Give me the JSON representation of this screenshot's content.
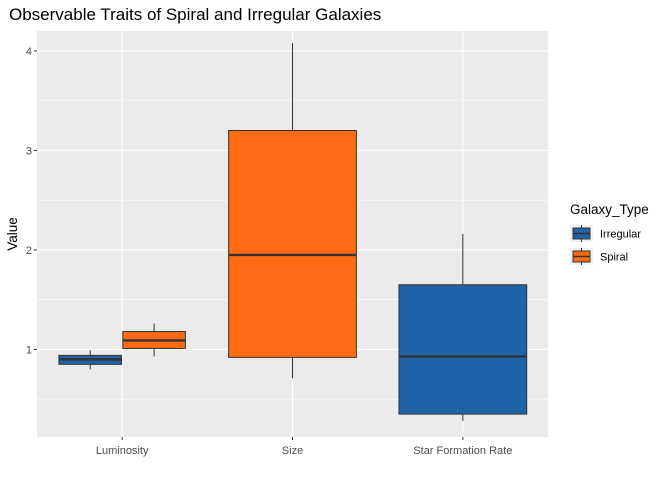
{
  "chart_data": {
    "type": "boxplot",
    "title": "Observable Traits of Spiral and Irregular Galaxies",
    "xlabel": "",
    "ylabel": "Value",
    "categories": [
      "Luminosity",
      "Size",
      "Star Formation Rate"
    ],
    "y_ticks": [
      1,
      2,
      3,
      4
    ],
    "ylim": [
      0.12,
      4.2
    ],
    "grid": true,
    "legend": {
      "title": "Galaxy_Type",
      "placement": "right",
      "entries": [
        {
          "name": "Irregular",
          "color": "#1f63a8"
        },
        {
          "name": "Spiral",
          "color": "#ff6a13"
        }
      ]
    },
    "series": [
      {
        "name": "Irregular",
        "color": "#1f63a8",
        "boxes": [
          {
            "category": "Luminosity",
            "min": 0.8,
            "q1": 0.85,
            "median": 0.9,
            "q3": 0.94,
            "max": 0.99
          },
          {
            "category": "Star Formation Rate",
            "min": 0.28,
            "q1": 0.35,
            "median": 0.93,
            "q3": 1.65,
            "max": 2.16
          }
        ]
      },
      {
        "name": "Spiral",
        "color": "#ff6a13",
        "boxes": [
          {
            "category": "Luminosity",
            "min": 0.93,
            "q1": 1.01,
            "median": 1.09,
            "q3": 1.18,
            "max": 1.26
          },
          {
            "category": "Size",
            "min": 0.71,
            "q1": 0.92,
            "median": 1.95,
            "q3": 3.2,
            "max": 4.08
          }
        ]
      }
    ]
  }
}
